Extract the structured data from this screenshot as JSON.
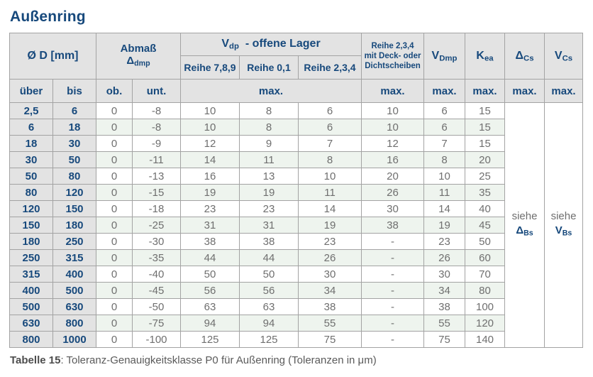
{
  "title": "Außenring",
  "colors": {
    "accent_blue": "#17497c",
    "header_bg": "#e3e3e3",
    "row_alt_green": "#eef4ee",
    "value_text": "#6f6f6f",
    "border": "#a3a3a3"
  },
  "table": {
    "header": {
      "diameter_label": "Ø D  [mm]",
      "abmass_line1": "Abmaß",
      "abmass_base": "Δ",
      "abmass_sub": "dmp",
      "vdp_base": "V",
      "vdp_sub": "dp",
      "vdp_rest": "-  offene Lager",
      "reihe_789": "Reihe 7,8,9",
      "reihe_01": "Reihe 0,1",
      "reihe_234": "Reihe 2,3,4",
      "deck_line1": "Reihe 2,3,4",
      "deck_line2": "mit Deck- oder",
      "deck_line3": "Dichtscheiben",
      "vdmp_base": "V",
      "vdmp_sub": "Dmp",
      "kea_base": "K",
      "kea_sub": "ea",
      "delta_cs_base": "Δ",
      "delta_cs_sub": "Cs",
      "v_cs_base": "V",
      "v_cs_sub": "Cs",
      "col_uber": "über",
      "col_bis": "bis",
      "col_ob": "ob.",
      "col_unt": "unt.",
      "max_label": "max."
    },
    "columns": [
      "über",
      "bis",
      "ob.",
      "unt.",
      "Reihe 7,8,9",
      "Reihe 0,1",
      "Reihe 2,3,4",
      "Reihe 2,3,4 mit Deck- oder Dichtscheiben",
      "V Dmp",
      "K ea"
    ],
    "rows": [
      [
        "2,5",
        "6",
        "0",
        "-8",
        "10",
        "8",
        "6",
        "10",
        "6",
        "15"
      ],
      [
        "6",
        "18",
        "0",
        "-8",
        "10",
        "8",
        "6",
        "10",
        "6",
        "15"
      ],
      [
        "18",
        "30",
        "0",
        "-9",
        "12",
        "9",
        "7",
        "12",
        "7",
        "15"
      ],
      [
        "30",
        "50",
        "0",
        "-11",
        "14",
        "11",
        "8",
        "16",
        "8",
        "20"
      ],
      [
        "50",
        "80",
        "0",
        "-13",
        "16",
        "13",
        "10",
        "20",
        "10",
        "25"
      ],
      [
        "80",
        "120",
        "0",
        "-15",
        "19",
        "19",
        "11",
        "26",
        "11",
        "35"
      ],
      [
        "120",
        "150",
        "0",
        "-18",
        "23",
        "23",
        "14",
        "30",
        "14",
        "40"
      ],
      [
        "150",
        "180",
        "0",
        "-25",
        "31",
        "31",
        "19",
        "38",
        "19",
        "45"
      ],
      [
        "180",
        "250",
        "0",
        "-30",
        "38",
        "38",
        "23",
        "-",
        "23",
        "50"
      ],
      [
        "250",
        "315",
        "0",
        "-35",
        "44",
        "44",
        "26",
        "-",
        "26",
        "60"
      ],
      [
        "315",
        "400",
        "0",
        "-40",
        "50",
        "50",
        "30",
        "-",
        "30",
        "70"
      ],
      [
        "400",
        "500",
        "0",
        "-45",
        "56",
        "56",
        "34",
        "-",
        "34",
        "80"
      ],
      [
        "500",
        "630",
        "0",
        "-50",
        "63",
        "63",
        "38",
        "-",
        "38",
        "100"
      ],
      [
        "630",
        "800",
        "0",
        "-75",
        "94",
        "94",
        "55",
        "-",
        "55",
        "120"
      ],
      [
        "800",
        "1000",
        "0",
        "-100",
        "125",
        "125",
        "75",
        "-",
        "75",
        "140"
      ]
    ],
    "siehe_dbs": {
      "text": "siehe",
      "base": "Δ",
      "sub": "Bs"
    },
    "siehe_vbs": {
      "text": "siehe",
      "base": "V",
      "sub": "Bs"
    }
  },
  "caption": {
    "bold": "Tabelle 15",
    "rest": ": Toleranz-Genauigkeitsklasse P0 für Außenring (Toleranzen in μm)"
  }
}
